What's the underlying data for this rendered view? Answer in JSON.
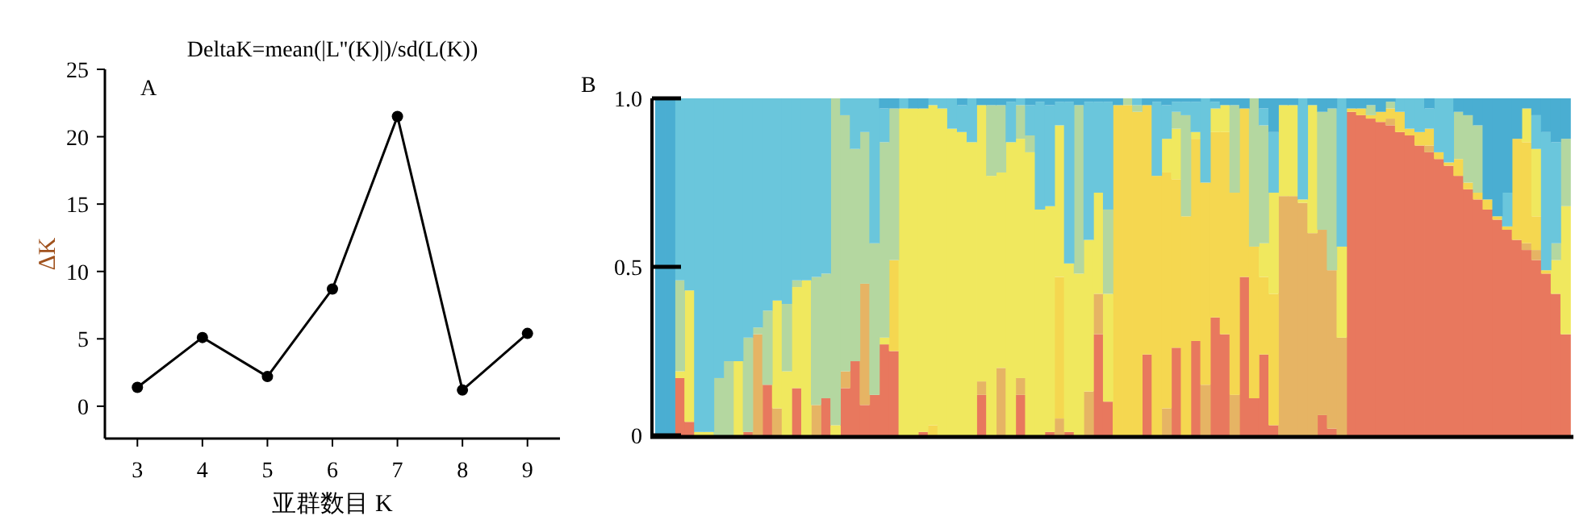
{
  "chart_data": [
    {
      "type": "line",
      "title": "DeltaK=mean(|L''(K)|)/sd(L(K))",
      "xlabel": "亚群数目 K",
      "ylabel": "ΔK",
      "annotations": [
        "A"
      ],
      "x": [
        3,
        4,
        5,
        6,
        7,
        8,
        9
      ],
      "series": [
        {
          "color": "#000000",
          "values": [
            1.4,
            5.1,
            2.2,
            8.7,
            21.5,
            1.2,
            5.4
          ]
        }
      ],
      "xlim": [
        2.5,
        9.5
      ],
      "xticks": [
        3,
        4,
        5,
        6,
        7,
        8,
        9
      ],
      "ylim": [
        -2.4,
        25
      ],
      "yticks": [
        0,
        5,
        10,
        15,
        20,
        25
      ],
      "marker": "circle",
      "line_style": "solid"
    },
    {
      "type": "bar",
      "stacked": true,
      "annotations": [
        "B"
      ],
      "tick_labels": "y",
      "ylim": [
        0,
        1
      ],
      "yticks": [
        0,
        0.5,
        {
          "value": 1,
          "label": "1.0"
        }
      ],
      "categories": [
        null,
        null,
        null,
        null,
        null,
        null,
        null,
        null,
        null,
        null,
        null,
        null,
        null,
        null,
        null,
        null,
        null,
        null,
        null,
        null,
        null,
        null,
        null,
        null,
        null,
        null,
        null,
        null,
        null,
        null,
        null,
        null,
        null,
        null,
        null,
        null,
        null,
        null,
        null,
        null,
        null,
        null,
        null,
        null,
        null,
        null,
        null,
        null,
        null,
        null,
        null,
        null,
        null,
        null,
        null,
        null,
        null,
        null,
        null,
        null,
        null,
        null,
        null,
        null,
        null,
        null,
        null,
        null,
        null,
        null,
        null,
        null,
        null,
        null,
        null,
        null,
        null,
        null,
        null,
        null,
        null,
        null,
        null,
        null,
        null,
        null,
        null,
        null,
        null,
        null,
        null,
        null,
        null,
        null
      ],
      "series": [
        {
          "color": "#e8785e",
          "values": [
            0,
            0,
            0.17,
            0.04,
            0,
            0,
            0,
            0,
            0,
            0.01,
            0,
            0.15,
            0,
            0,
            0.14,
            0,
            0,
            0.11,
            0,
            0.14,
            0.22,
            0.09,
            0.12,
            0.27,
            0.25,
            0,
            0,
            0.01,
            0,
            0,
            0,
            0,
            0,
            0.12,
            0,
            0,
            0,
            0.12,
            0,
            0,
            0.01,
            0,
            0.01,
            0,
            0,
            0.3,
            0.1,
            0,
            0,
            0,
            0.24,
            0,
            0,
            0.26,
            0,
            0.28,
            0,
            0.35,
            0.3,
            0,
            0.47,
            0.11,
            0.24,
            0.03,
            0,
            0,
            0,
            0,
            0.06,
            0.02,
            0,
            0.96,
            0.95,
            0.94,
            0.93,
            0.92,
            0.9,
            0.89,
            0.86,
            0.84,
            0.82,
            0.8,
            0.77,
            0.73,
            0.7,
            0.67,
            0.64,
            0.61,
            0.58,
            0.55,
            0.52,
            0.48,
            0.42,
            0.3
          ]
        },
        {
          "color": "#e6b464",
          "values": [
            0,
            0,
            0,
            0,
            0,
            0,
            0,
            0,
            0,
            0,
            0.3,
            0,
            0.08,
            0,
            0,
            0,
            0.09,
            0,
            0,
            0.05,
            0,
            0.36,
            0,
            0,
            0,
            0,
            0,
            0,
            0,
            0,
            0,
            0,
            0,
            0.04,
            0,
            0.2,
            0,
            0.05,
            0,
            0,
            0,
            0.05,
            0,
            0,
            0.13,
            0.12,
            0,
            0,
            0,
            0,
            0,
            0,
            0.08,
            0,
            0,
            0,
            0.15,
            0,
            0,
            0.12,
            0,
            0,
            0,
            0,
            0.71,
            0.71,
            0.69,
            0.6,
            0.55,
            0.47,
            0.29,
            0,
            0,
            0,
            0,
            0.02,
            0,
            0,
            0,
            0.02,
            0,
            0,
            0,
            0,
            0,
            0,
            0,
            0,
            0,
            0.02,
            0.03,
            0,
            0,
            0
          ]
        },
        {
          "color": "#f5d750",
          "values": [
            0,
            0,
            0,
            0,
            0,
            0,
            0,
            0,
            0,
            0,
            0,
            0,
            0,
            0,
            0,
            0,
            0,
            0,
            0,
            0,
            0,
            0,
            0,
            0,
            0.27,
            0,
            0,
            0,
            0.03,
            0,
            0,
            0,
            0,
            0,
            0,
            0,
            0,
            0,
            0,
            0,
            0,
            0.42,
            0,
            0,
            0,
            0,
            0,
            0.98,
            0.98,
            0.96,
            0.74,
            0.77,
            0.7,
            0.5,
            0.65,
            0.6,
            0.6,
            0.55,
            0.6,
            0.6,
            0.5,
            0.45,
            0.23,
            0.39,
            0,
            0,
            0,
            0,
            0,
            0,
            0,
            0.01,
            0.02,
            0.01,
            0.03,
            0.03,
            0.06,
            0.02,
            0.04,
            0.05,
            0.02,
            0.01,
            0.05,
            0.02,
            0.02,
            0.03,
            0.01,
            0.01,
            0.3,
            0.3,
            0.1,
            0.01,
            0,
            0
          ]
        },
        {
          "color": "#f0e85e",
          "values": [
            0,
            0,
            0.02,
            0.39,
            0.01,
            0.01,
            0,
            0,
            0.22,
            0,
            0,
            0,
            0.32,
            0.19,
            0.3,
            0.46,
            0,
            0,
            0.03,
            0,
            0,
            0,
            0,
            0.02,
            0,
            0.97,
            0.97,
            0.96,
            0.95,
            0.97,
            0.91,
            0.9,
            0.87,
            0.82,
            0.77,
            0.58,
            0.87,
            0.71,
            0.84,
            0.67,
            0.67,
            0.45,
            0.5,
            0.48,
            0.45,
            0.3,
            0.32,
            0,
            0,
            0,
            0,
            0,
            0.1,
            0.15,
            0,
            0.02,
            0,
            0.07,
            0.08,
            0,
            0,
            0,
            0.1,
            0.3,
            0.27,
            0.27,
            0.01,
            0.38,
            0,
            0,
            0.27,
            0,
            0,
            0,
            0,
            0,
            0,
            0,
            0,
            0,
            0,
            0,
            0,
            0,
            0,
            0,
            0,
            0,
            0,
            0.1,
            0.2,
            0,
            0.1,
            0.38
          ]
        },
        {
          "color": "#b4d7a0",
          "values": [
            0,
            0,
            0.27,
            0,
            0,
            0,
            0.17,
            0.22,
            0,
            0.28,
            0.02,
            0.22,
            0,
            0.2,
            0.02,
            0,
            0.38,
            0.37,
            0.97,
            0.76,
            0.63,
            0.45,
            0.45,
            0.58,
            0.45,
            0,
            0,
            0,
            0,
            0,
            0,
            0,
            0,
            0,
            0.21,
            0.2,
            0,
            0.1,
            0.05,
            0,
            0,
            0,
            0,
            0.5,
            0,
            0,
            0.25,
            0,
            0.02,
            0.02,
            0,
            0,
            0,
            0.05,
            0.3,
            0,
            0,
            0,
            0,
            0.26,
            0,
            0.44,
            0.35,
            0,
            0,
            0,
            0,
            0,
            0.35,
            0.48,
            0,
            0,
            0,
            0.03,
            0,
            0.02,
            0,
            0,
            0,
            0,
            0,
            0,
            0.14,
            0.2,
            0.2,
            0,
            0,
            0,
            0,
            0,
            0,
            0,
            0.05,
            0.2
          ]
        },
        {
          "color": "#6ac6dc",
          "values": [
            0,
            0,
            0.54,
            0.57,
            0.99,
            0.99,
            0.83,
            0.78,
            0.78,
            0.71,
            0.68,
            0.63,
            0.6,
            0.61,
            0.54,
            0.54,
            0.53,
            0.52,
            0,
            0.05,
            0.15,
            0.1,
            0.43,
            0.1,
            0,
            0.03,
            0,
            0,
            0.02,
            0.03,
            0.09,
            0.08,
            0.13,
            0,
            0,
            0,
            0.12,
            0.02,
            0.09,
            0.32,
            0.3,
            0.07,
            0.48,
            0,
            0.41,
            0.27,
            0.32,
            0,
            0,
            0.02,
            0,
            0.22,
            0.1,
            0.03,
            0.04,
            0.09,
            0.25,
            0.02,
            0,
            0,
            0,
            0,
            0.05,
            0.18,
            0,
            0,
            0.3,
            0,
            0,
            0,
            0.44,
            0,
            0,
            0,
            0,
            0,
            0.04,
            0.09,
            0.1,
            0.06,
            0.16,
            0.19,
            0,
            0,
            0,
            0,
            0,
            0.1,
            0,
            0,
            0.1,
            0.41,
            0.3,
            0
          ]
        },
        {
          "color": "#4aaed2",
          "values": [
            1,
            1,
            0,
            0,
            0,
            0,
            0,
            0,
            0,
            0,
            0,
            0,
            0,
            0,
            0,
            0,
            0,
            0,
            0,
            0,
            0,
            0,
            0,
            0.03,
            0.03,
            0,
            0.03,
            0.03,
            0,
            0,
            0,
            0.02,
            0,
            0.02,
            0.02,
            0.02,
            0.01,
            0,
            0.02,
            0.01,
            0.02,
            0.01,
            0.01,
            0.02,
            0.01,
            0.01,
            0.01,
            0.02,
            0,
            0,
            0.02,
            0.01,
            0.02,
            0.01,
            0.01,
            0.01,
            0,
            0.01,
            0.02,
            0.02,
            0.03,
            0,
            0.03,
            0.1,
            0.02,
            0.02,
            0,
            0.02,
            0.04,
            0.03,
            0,
            0.03,
            0.03,
            0.02,
            0.04,
            0.01,
            0,
            0,
            0,
            0.03,
            0,
            0,
            0.04,
            0.05,
            0.08,
            0.3,
            0.35,
            0.28,
            0.12,
            0.03,
            0.05,
            0.1,
            0.13,
            0.12
          ]
        }
      ]
    }
  ]
}
